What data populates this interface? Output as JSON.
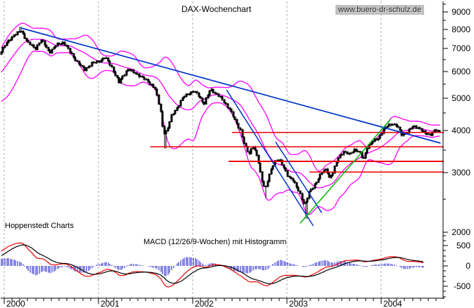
{
  "header": {
    "title": "DAX-Wochenchart",
    "link": "www.buero-dr-schulz.de"
  },
  "branding": {
    "watermark": "Hoppenstedt Charts"
  },
  "panels": {
    "macd_label": "MACD (12/26/9-Wochen) mit Histogramm"
  },
  "colors": {
    "candle": "#000000",
    "bollinger": "#ff00ff",
    "trend_blue": "#0033cc",
    "trend_green": "#00bb00",
    "level_red": "#ee0000",
    "histogram_blue": "#1111cc",
    "macd_line_red": "#ee0000",
    "signal_line_black": "#000000",
    "grid_gray": "#ababab",
    "link_bg": "#c0c0c0"
  },
  "axes": {
    "x_years": [
      "2000",
      "2001",
      "2002",
      "2003",
      "2004"
    ],
    "price_major": [
      9000,
      8000,
      7000,
      6000,
      5000,
      4000,
      3000,
      2000
    ],
    "price_minor": [
      9500,
      8500,
      7500,
      6500,
      5500,
      4500,
      3500,
      2500
    ],
    "macd_major": [
      500,
      0,
      -500
    ],
    "macd_minor": [
      750,
      625,
      375,
      250,
      125,
      -125,
      -250,
      -375,
      -625,
      -750
    ]
  },
  "chart_data": [
    {
      "type": "candlestick",
      "title": "DAX-Wochenchart",
      "x_unit": "year",
      "x_range": [
        1999.963,
        2004.657
      ],
      "y_scale": "log",
      "y_range": [
        1958,
        9395
      ],
      "y_ticks": [
        9000,
        8000,
        7000,
        6000,
        5000,
        4000,
        3000,
        2000
      ],
      "preroll_anchors": [
        [
          1999.45,
          5350
        ],
        [
          1999.6,
          5200
        ],
        [
          1999.75,
          5550
        ],
        [
          1999.85,
          6150
        ],
        [
          1999.94,
          6700
        ]
      ],
      "closes_weekly_anchors": [
        [
          1999.97,
          6900
        ],
        [
          2000.03,
          7300
        ],
        [
          2000.1,
          7680
        ],
        [
          2000.18,
          7900
        ],
        [
          2000.25,
          7320
        ],
        [
          2000.33,
          6980
        ],
        [
          2000.39,
          7450
        ],
        [
          2000.48,
          6830
        ],
        [
          2000.55,
          7160
        ],
        [
          2000.63,
          7320
        ],
        [
          2000.7,
          6830
        ],
        [
          2000.78,
          6380
        ],
        [
          2000.85,
          6050
        ],
        [
          2000.93,
          6340
        ],
        [
          2001.0,
          6400
        ],
        [
          2001.07,
          6620
        ],
        [
          2001.15,
          6100
        ],
        [
          2001.22,
          5550
        ],
        [
          2001.31,
          6100
        ],
        [
          2001.37,
          5950
        ],
        [
          2001.45,
          5800
        ],
        [
          2001.52,
          5600
        ],
        [
          2001.6,
          5360
        ],
        [
          2001.66,
          4570
        ],
        [
          2001.69,
          3920
        ],
        [
          2001.73,
          4000
        ],
        [
          2001.78,
          4440
        ],
        [
          2001.84,
          4700
        ],
        [
          2001.9,
          5030
        ],
        [
          2001.97,
          5180
        ],
        [
          2002.01,
          5230
        ],
        [
          2002.06,
          5100
        ],
        [
          2002.12,
          4800
        ],
        [
          2002.19,
          5300
        ],
        [
          2002.27,
          5100
        ],
        [
          2002.33,
          4870
        ],
        [
          2002.39,
          4650
        ],
        [
          2002.45,
          4280
        ],
        [
          2002.51,
          4000
        ],
        [
          2002.55,
          3630
        ],
        [
          2002.6,
          3390
        ],
        [
          2002.64,
          3630
        ],
        [
          2002.69,
          3310
        ],
        [
          2002.73,
          2870
        ],
        [
          2002.77,
          2690
        ],
        [
          2002.81,
          2930
        ],
        [
          2002.87,
          3230
        ],
        [
          2002.92,
          3310
        ],
        [
          2002.97,
          3080
        ],
        [
          2003.01,
          2930
        ],
        [
          2003.06,
          2870
        ],
        [
          2003.1,
          2720
        ],
        [
          2003.15,
          2560
        ],
        [
          2003.19,
          2400
        ],
        [
          2003.24,
          2620
        ],
        [
          2003.28,
          2720
        ],
        [
          2003.33,
          2870
        ],
        [
          2003.37,
          3000
        ],
        [
          2003.42,
          3080
        ],
        [
          2003.45,
          2900
        ],
        [
          2003.49,
          3000
        ],
        [
          2003.54,
          3310
        ],
        [
          2003.6,
          3470
        ],
        [
          2003.66,
          3390
        ],
        [
          2003.72,
          3520
        ],
        [
          2003.78,
          3420
        ],
        [
          2003.81,
          3260
        ],
        [
          2003.85,
          3560
        ],
        [
          2003.91,
          3710
        ],
        [
          2003.97,
          3800
        ],
        [
          2004.02,
          4000
        ],
        [
          2004.07,
          4140
        ],
        [
          2004.12,
          4200
        ],
        [
          2004.17,
          4120
        ],
        [
          2004.22,
          3890
        ],
        [
          2004.28,
          3960
        ],
        [
          2004.34,
          4120
        ],
        [
          2004.4,
          4080
        ],
        [
          2004.46,
          3930
        ],
        [
          2004.52,
          3890
        ],
        [
          2004.57,
          4000
        ],
        [
          2004.62,
          3960
        ]
      ],
      "key_lows": [
        [
          2001.71,
          3540
        ],
        [
          2002.77,
          2520
        ],
        [
          2003.21,
          2190
        ]
      ],
      "key_highs": [
        [
          2000.17,
          8136
        ],
        [
          2004.12,
          4175
        ]
      ],
      "bollinger": {
        "window": 18,
        "mult": 2.1
      },
      "trendlines": [
        {
          "name": "major-downtrend",
          "color_key": "trend_blue",
          "from": [
            2000.18,
            8060
          ],
          "to": [
            2004.63,
            3670
          ],
          "w": 1.7
        },
        {
          "name": "steep-downtrend-1",
          "color_key": "trend_blue",
          "from": [
            2002.36,
            5280
          ],
          "to": [
            2003.28,
            2085
          ],
          "w": 1.5
        },
        {
          "name": "steep-downtrend-2",
          "color_key": "trend_blue",
          "from": [
            2002.88,
            3700
          ],
          "to": [
            2003.37,
            2280
          ],
          "w": 1.5
        },
        {
          "name": "recovery-uptrend",
          "color_key": "trend_green",
          "from": [
            2003.14,
            2120
          ],
          "to": [
            2004.1,
            4320
          ],
          "w": 1.5
        }
      ],
      "horizontal_levels": [
        {
          "price": 3950,
          "from": 2002.42
        },
        {
          "price": 3580,
          "from": 2001.55
        },
        {
          "price": 3240,
          "from": 2002.38
        },
        {
          "price": 3010,
          "from": 2003.24
        }
      ]
    },
    {
      "type": "macd",
      "label": "MACD (12/26/9-Wochen) mit Histogramm",
      "params": {
        "fast": 12,
        "slow": 26,
        "signal": 9,
        "unit": "Wochen"
      },
      "y_ticks": [
        500,
        0,
        -500
      ],
      "derived_from": "closes_weekly_anchors",
      "histogram_scale": 1.6,
      "x_end": 2004.45
    }
  ]
}
